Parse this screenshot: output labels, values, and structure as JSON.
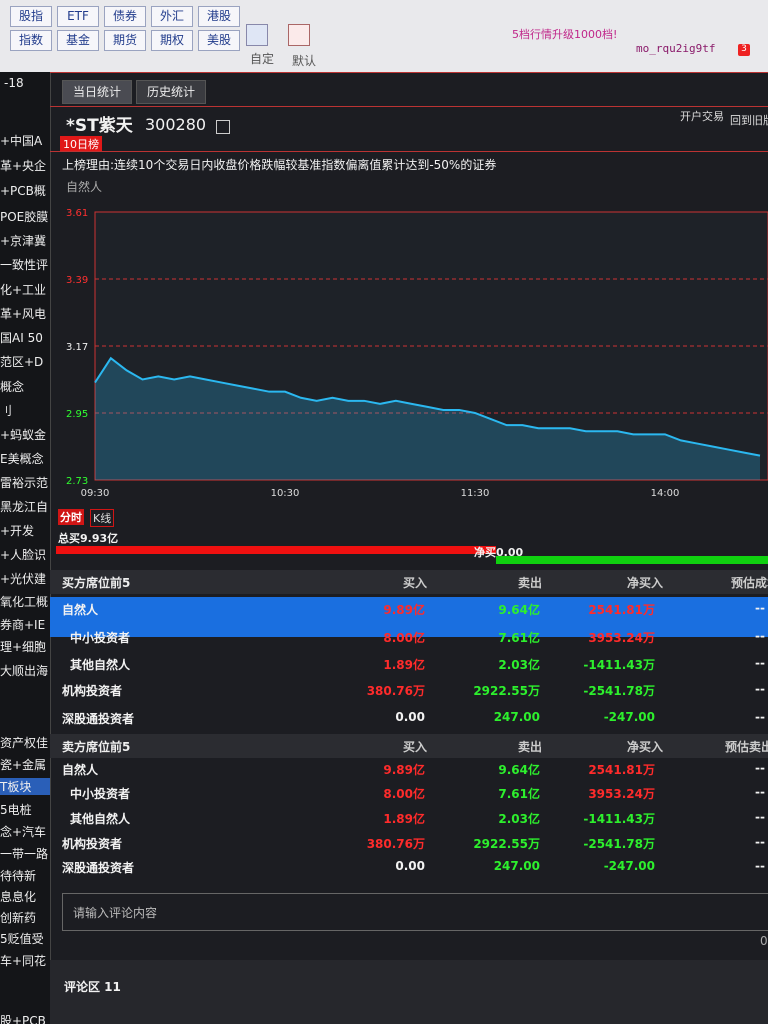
{
  "toolbar": {
    "markets": [
      [
        "股指",
        "ETF",
        "债券",
        "外汇",
        "港股"
      ],
      [
        "指数",
        "基金",
        "期货",
        "期权",
        "美股"
      ]
    ],
    "custom": "自定",
    "default": "默认",
    "notice": "5档行情升级1000档!",
    "user": "mo_rqu2ig9tf",
    "badge": "3"
  },
  "sidebar": {
    "date": "-18",
    "items": [
      "+中国A",
      "革+央企",
      "+PCB概",
      "POE胶膜",
      "+京津冀",
      "一致性评",
      "化+工业",
      "革+风电",
      "国AI 50",
      "范区+D",
      "概念",
      "刂",
      "+蚂蚁金",
      "E美概念",
      "雷裕示范",
      "黑龙江自",
      "+开发",
      "+人脸识",
      "+光伏建",
      "氧化工概",
      "券商+IE",
      "理+细胞",
      "大顺出海",
      "资产权佳",
      "瓷+金属",
      "T板块",
      "5电桩",
      "念+汽车",
      "一带一路",
      "待待新",
      "息息化",
      "创新药",
      "5贬值受",
      "车+同花",
      "股+PCB"
    ]
  },
  "tabs": [
    "当日统计",
    "历史统计"
  ],
  "stock": {
    "name": "*ST紫天",
    "code": "300280",
    "links": [
      "开户交易",
      "回到旧版"
    ],
    "list_badge": "10日榜",
    "reason": "上榜理由:连续10个交易日内收盘价格跌幅较基准指数偏离值累计达到-50%的证券",
    "trader": "自然人"
  },
  "chart": {
    "type": "line",
    "categories": [
      "09:30",
      null,
      null,
      null,
      null,
      null,
      null,
      null,
      null,
      null,
      null,
      null,
      "10:30",
      null,
      null,
      null,
      null,
      null,
      null,
      null,
      null,
      null,
      null,
      null,
      "11:30",
      null,
      null,
      null,
      null,
      null,
      null,
      null,
      null,
      null,
      null,
      null,
      "14:00",
      null,
      null,
      null,
      null,
      null,
      null
    ],
    "values": [
      3.05,
      3.13,
      3.09,
      3.06,
      3.07,
      3.06,
      3.07,
      3.06,
      3.05,
      3.04,
      3.03,
      3.02,
      3.02,
      3.0,
      2.99,
      3.0,
      2.99,
      2.99,
      2.98,
      2.99,
      2.98,
      2.97,
      2.96,
      2.96,
      2.95,
      2.93,
      2.91,
      2.91,
      2.9,
      2.9,
      2.9,
      2.89,
      2.89,
      2.89,
      2.88,
      2.88,
      2.88,
      2.86,
      2.85,
      2.84,
      2.83,
      2.82,
      2.81
    ],
    "color": "#2bb8f0",
    "ylim": [
      2.73,
      3.61
    ],
    "yticks": [
      3.61,
      3.39,
      3.17,
      2.95,
      2.73
    ],
    "grid": true
  },
  "chart_tabs": [
    "分时",
    "K线"
  ],
  "total_buy": "总买9.93亿",
  "net_buy": "净买0.00",
  "buy_table": {
    "header": [
      "买方席位前5",
      "买入",
      "卖出",
      "净买入",
      "预估成本"
    ],
    "rows": [
      [
        "自然人",
        "9.89亿",
        "9.64亿",
        "2541.81万",
        "--"
      ],
      [
        "中小投资者",
        "8.00亿",
        "7.61亿",
        "3953.24万",
        "--"
      ],
      [
        "其他自然人",
        "1.89亿",
        "2.03亿",
        "-1411.43万",
        "--"
      ],
      [
        "机构投资者",
        "380.76万",
        "2922.55万",
        "-2541.78万",
        "--"
      ],
      [
        "深股通投资者",
        "0.00",
        "247.00",
        "-247.00",
        "--"
      ]
    ]
  },
  "sell_table": {
    "header": [
      "卖方席位前5",
      "买入",
      "卖出",
      "净买入",
      "预估卖出价"
    ],
    "rows": [
      [
        "自然人",
        "9.89亿",
        "9.64亿",
        "2541.81万",
        "--"
      ],
      [
        "中小投资者",
        "8.00亿",
        "7.61亿",
        "3953.24万",
        "--"
      ],
      [
        "其他自然人",
        "1.89亿",
        "2.03亿",
        "-1411.43万",
        "--"
      ],
      [
        "机构投资者",
        "380.76万",
        "2922.55万",
        "-2541.78万",
        "--"
      ],
      [
        "深股通投资者",
        "0.00",
        "247.00",
        "-247.00",
        "--"
      ]
    ]
  },
  "comment": {
    "placeholder": "请输入评论内容",
    "count": "0",
    "section": "评论区 11"
  }
}
